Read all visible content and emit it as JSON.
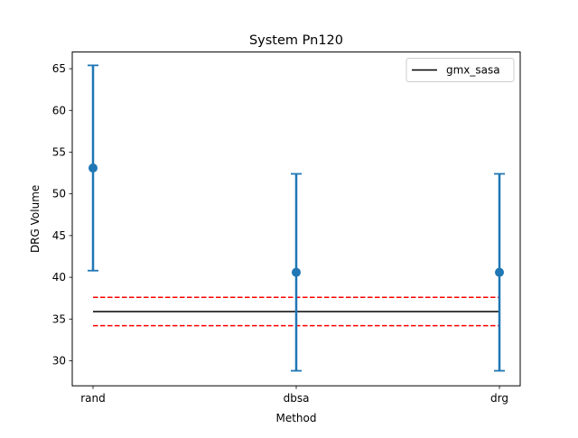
{
  "chart_data": {
    "type": "errorbar",
    "title": "System Pn120",
    "xlabel": "Method",
    "ylabel": "DRG Volume",
    "categories": [
      "rand",
      "dbsa",
      "drg"
    ],
    "ylim": [
      27,
      67
    ],
    "yticks": [
      30,
      35,
      40,
      45,
      50,
      55,
      60,
      65
    ],
    "grid": false,
    "legend_position": "top-right",
    "series": [
      {
        "style": "errorbar",
        "values": [
          53.1,
          40.6,
          40.6
        ],
        "errors": [
          12.3,
          11.8,
          11.8
        ],
        "color": "#1f77b4"
      }
    ],
    "reference_lines": [
      {
        "name": "gmx_sasa",
        "value": 35.9,
        "color": "#000000",
        "style": "solid",
        "in_legend": true
      },
      {
        "value": 37.6,
        "color": "#ff0000",
        "style": "dashed",
        "in_legend": false
      },
      {
        "value": 34.2,
        "color": "#ff0000",
        "style": "dashed",
        "in_legend": false
      }
    ]
  }
}
